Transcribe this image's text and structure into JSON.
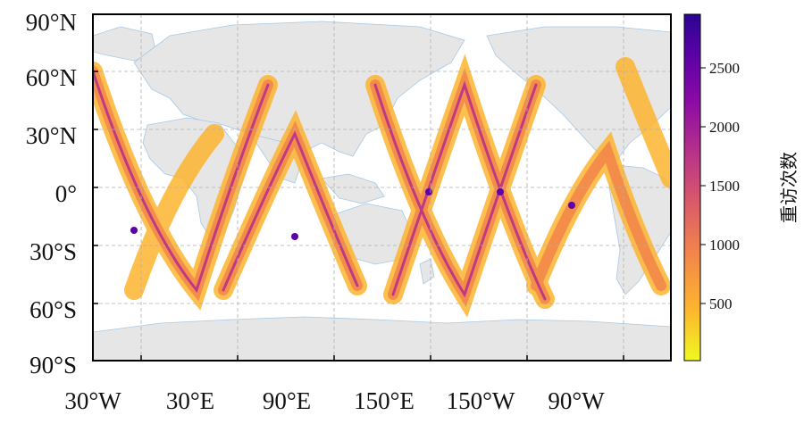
{
  "map": {
    "lat_ticks": [
      "90°N",
      "60°N",
      "30°N",
      "0°",
      "30°S",
      "60°S",
      "90°S"
    ],
    "lon_ticks": [
      "30°W",
      "30°E",
      "90°E",
      "150°E",
      "150°W",
      "90°W"
    ],
    "colorbar": {
      "label": "重访次数",
      "ticks": [
        "2500",
        "2000",
        "1500",
        "1000",
        "500"
      ],
      "colors": [
        "#f0f921",
        "#fdb42f",
        "#f48849",
        "#db5c68",
        "#b83289",
        "#8b0aa5",
        "#5c01a6",
        "#2a0593"
      ]
    },
    "colors": {
      "land": "#e6e6e6",
      "ocean": "#ffffff",
      "grid": "#b0b0b0",
      "coast": "#a6c8e6"
    }
  }
}
